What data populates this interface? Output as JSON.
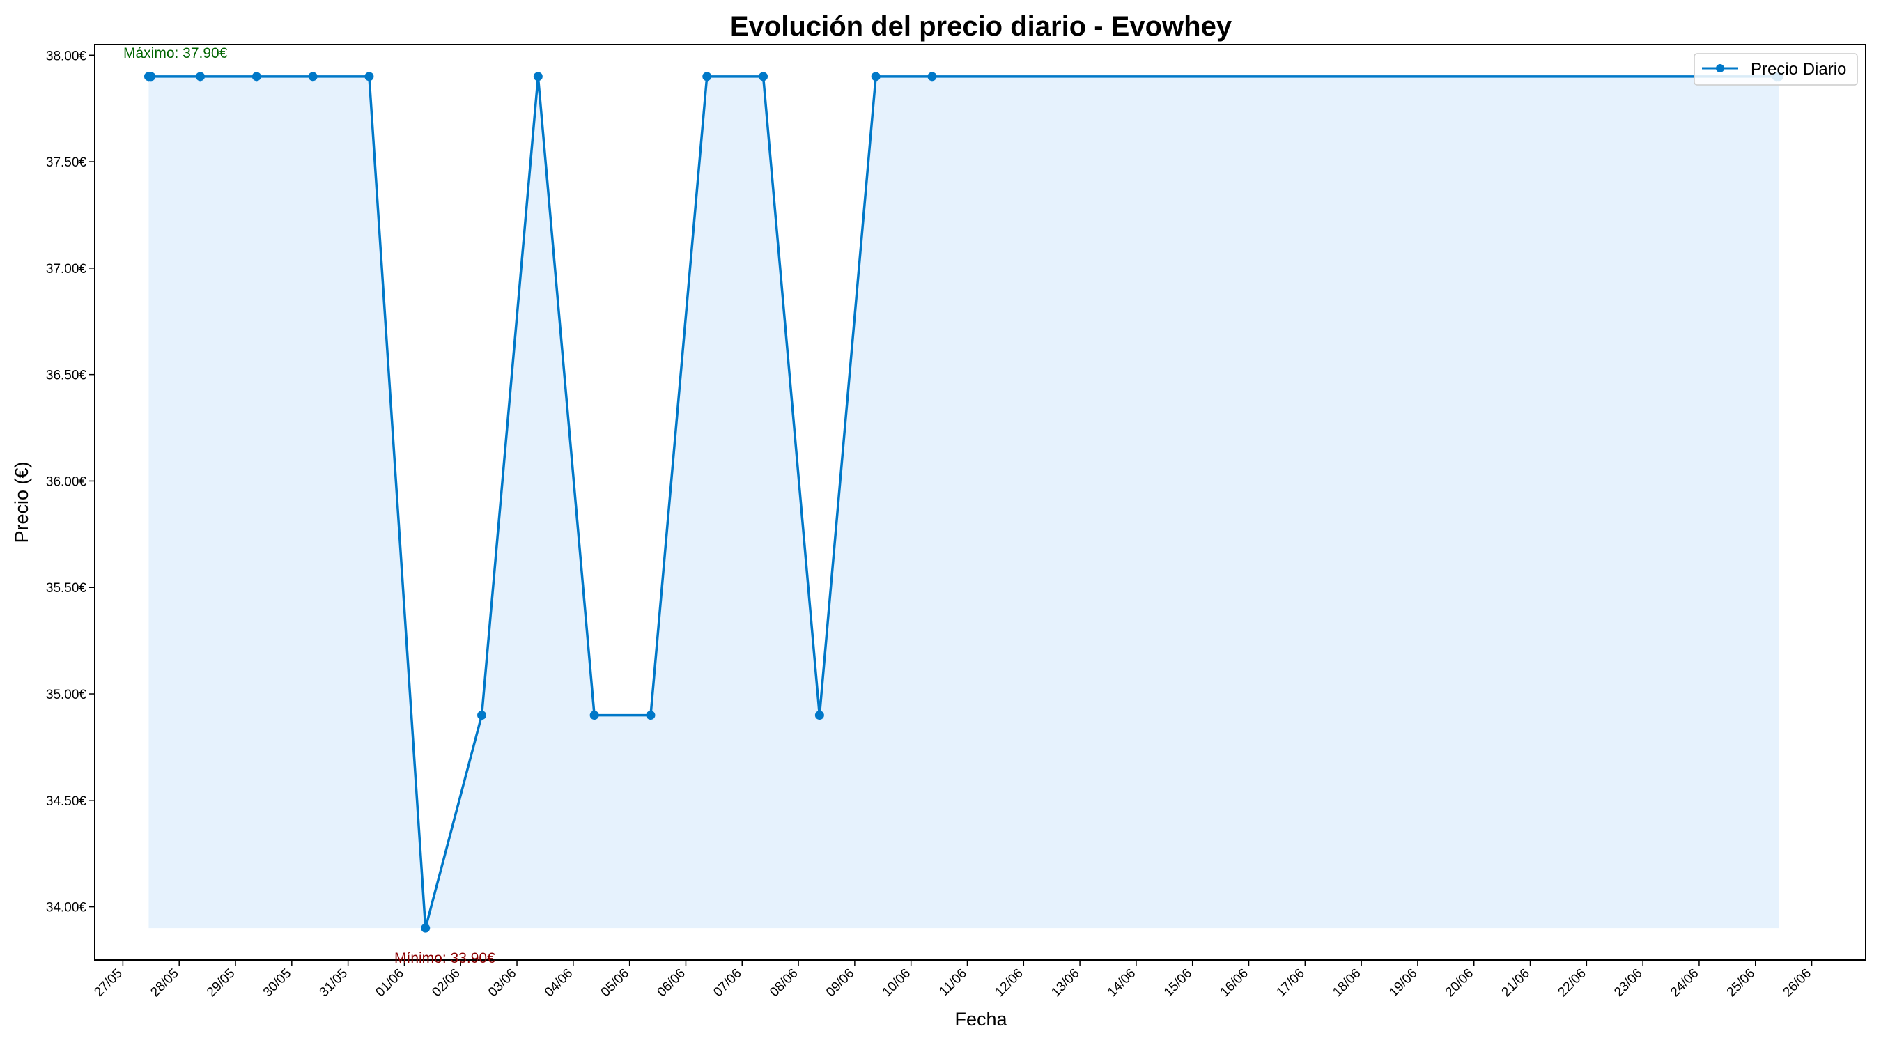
{
  "chart_data": {
    "type": "line",
    "title": "Evolución del precio diario - Evowhey",
    "xlabel": "Fecha",
    "ylabel": "Precio (€)",
    "ylim": [
      33.75,
      38.05
    ],
    "xlim": [
      "2025-05-26T12:00",
      "2025-06-26T23:00"
    ],
    "grid": false,
    "legend_position": "top-right",
    "colors": {
      "line": "#0078c8",
      "fill": "#d6e9fb",
      "max_annotation": "#006400",
      "min_annotation": "#8b0000"
    },
    "series": [
      {
        "name": "Precio Diario",
        "x": [
          "2025-05-27T11:00",
          "2025-05-27T12:00",
          "2025-05-28T09:00",
          "2025-05-29T09:00",
          "2025-05-30T09:00",
          "2025-05-31T09:00",
          "2025-06-01T09:00",
          "2025-06-02T09:00",
          "2025-06-03T09:00",
          "2025-06-04T09:00",
          "2025-06-05T09:00",
          "2025-06-06T09:00",
          "2025-06-07T09:00",
          "2025-06-08T09:00",
          "2025-06-09T09:00",
          "2025-06-10T09:00",
          "2025-06-25T09:00",
          "2025-06-25T10:00"
        ],
        "values": [
          37.9,
          37.9,
          37.9,
          37.9,
          37.9,
          37.9,
          33.9,
          34.9,
          37.9,
          34.9,
          34.9,
          37.9,
          37.9,
          34.9,
          37.9,
          37.9,
          37.9,
          37.9
        ]
      }
    ],
    "yticks": [
      34.0,
      34.5,
      35.0,
      35.5,
      36.0,
      36.5,
      37.0,
      37.5,
      38.0
    ],
    "ytick_labels": [
      "34.00€",
      "34.50€",
      "35.00€",
      "35.50€",
      "36.00€",
      "36.50€",
      "37.00€",
      "37.50€",
      "38.00€"
    ],
    "xtick_labels": [
      "27/05",
      "28/05",
      "29/05",
      "30/05",
      "31/05",
      "01/06",
      "02/06",
      "03/06",
      "04/06",
      "05/06",
      "06/06",
      "07/06",
      "08/06",
      "09/06",
      "10/06",
      "11/06",
      "12/06",
      "13/06",
      "14/06",
      "15/06",
      "16/06",
      "17/06",
      "18/06",
      "19/06",
      "20/06",
      "21/06",
      "22/06",
      "23/06",
      "24/06",
      "25/06",
      "26/06"
    ],
    "annotations": {
      "max": {
        "text": "Máximo: 37.90€",
        "value": 37.9,
        "x": "2025-05-27T11:00"
      },
      "min": {
        "text": "Mínimo: 33.90€",
        "value": 33.9,
        "x": "2025-06-01T09:00"
      }
    }
  }
}
